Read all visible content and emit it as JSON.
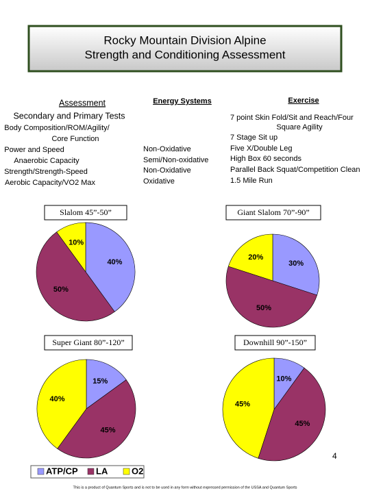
{
  "header": {
    "title": [
      "Rocky Mountain Division Alpine",
      "Strength and Conditioning Assessment"
    ]
  },
  "assessment": {
    "heading": [
      "Assessment",
      "Secondary and Primary Tests"
    ],
    "items": [
      "Body Composition/ROM/Agility/",
      "Core Function",
      "Power and Speed",
      "Anaerobic Capacity",
      "Strength/Strength-Speed",
      "Aerobic Capacity/VO2 Max"
    ]
  },
  "energy_systems": {
    "heading": "Energy Systems",
    "items": [
      "Non-Oxidative",
      "Semi/Non-oxidative",
      "Non-Oxidative",
      "Oxidative"
    ]
  },
  "exercise": {
    "heading": "Exercise",
    "items": [
      "7 point Skin Fold/Sit and Reach/Four",
      "Square Agility",
      "7 Stage Sit up",
      "Five X/Double Leg",
      "High Box 60 seconds",
      "Parallel Back Squat/Competition Clean",
      "1.5 Mile Run"
    ]
  },
  "legend": {
    "names": [
      "ATP/CP",
      "LA",
      "O2"
    ],
    "colors": [
      "#9999ff",
      "#993366",
      "#ffff00"
    ]
  },
  "chart_data": [
    {
      "type": "pie",
      "title": "Slalom 45”-50”",
      "values": [
        40,
        50,
        10
      ],
      "value_labels": [
        "40%",
        "50%",
        "10%"
      ]
    },
    {
      "type": "pie",
      "title": "Giant Slalom 70”-90”",
      "values": [
        30,
        50,
        20
      ],
      "value_labels": [
        "30%",
        "50%",
        "20%"
      ]
    },
    {
      "type": "pie",
      "title": "Super Giant 80”-120”",
      "values": [
        15,
        45,
        40
      ],
      "value_labels": [
        "15%",
        "45%",
        "40%"
      ]
    },
    {
      "type": "pie",
      "title": "Downhill 90”-150”",
      "values": [
        10,
        45,
        45
      ],
      "value_labels": [
        "10%",
        "45%",
        "45%"
      ]
    }
  ],
  "page_number": "4",
  "footer": "This is a product of Quantum Sports and is not to be used in any form without expressed permission of the USSA and Quantum Sports"
}
